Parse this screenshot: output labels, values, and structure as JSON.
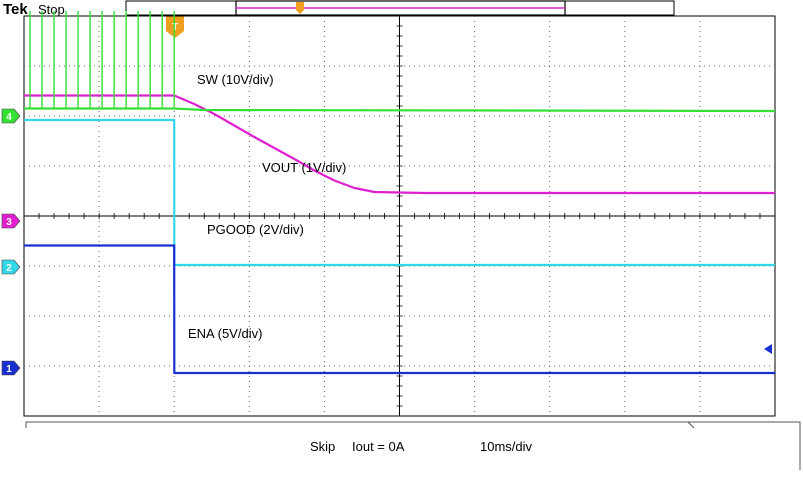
{
  "header": {
    "brand": "Tek",
    "acquisition_state": "Stop",
    "trigger_marker": "T"
  },
  "footer": {
    "mode": "Skip",
    "load": "Iout = 0A",
    "timebase": "10ms/div"
  },
  "colors": {
    "ch1": "#1a2fd0",
    "ch2": "#33d6e6",
    "ch3": "#e020d0",
    "ch4": "#33e033",
    "trigger": "#f0a020",
    "grid": "#000000"
  },
  "chart_data": {
    "type": "line",
    "x_unit": "ms",
    "x_range_ms": [
      -15,
      60
    ],
    "grid": true,
    "trigger_time_ms": 0,
    "series": [
      {
        "name": "SW (10V/div)",
        "channel": "4",
        "color": "#33e033",
        "baseline_div": 0,
        "points": [
          [
            -15,
            0.05
          ],
          [
            0,
            0.05
          ],
          [
            3,
            0.02
          ],
          [
            60,
            0
          ]
        ],
        "pulses_before_trigger": 13,
        "pulse_height_div": 2.0
      },
      {
        "name": "VOUT (1V/div)",
        "channel": "3",
        "color": "#e020d0",
        "baseline_div": 0,
        "points": [
          [
            -15,
            1.95
          ],
          [
            0,
            1.95
          ],
          [
            2,
            1.78
          ],
          [
            4,
            1.58
          ],
          [
            6,
            1.35
          ],
          [
            8,
            1.12
          ],
          [
            10,
            0.9
          ],
          [
            12,
            0.68
          ],
          [
            14,
            0.45
          ],
          [
            16,
            0.25
          ],
          [
            18,
            0.1
          ],
          [
            20,
            0.02
          ],
          [
            25,
            0
          ],
          [
            60,
            0
          ]
        ]
      },
      {
        "name": "PGOOD (2V/div)",
        "channel": "2",
        "color": "#33d6e6",
        "baseline_div": 0,
        "points": [
          [
            -15,
            2.9
          ],
          [
            0,
            2.9
          ],
          [
            0.01,
            0
          ],
          [
            60,
            0
          ]
        ]
      },
      {
        "name": "ENA  (5V/div)",
        "channel": "1",
        "color": "#1a2fd0",
        "baseline_div": 0,
        "points": [
          [
            -15,
            2.45
          ],
          [
            0,
            2.45
          ],
          [
            0.01,
            -0.1
          ],
          [
            60,
            -0.1
          ]
        ]
      }
    ]
  }
}
